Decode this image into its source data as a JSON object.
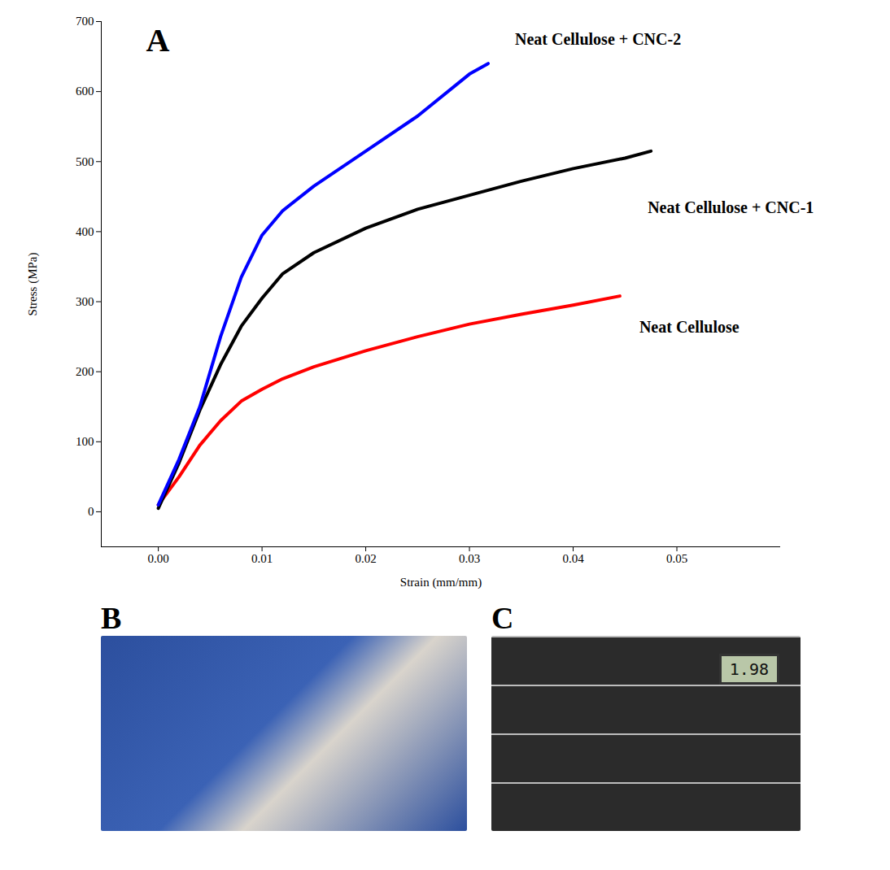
{
  "chart_data": {
    "type": "line",
    "panel": "A",
    "x_label": "Strain (mm/mm)",
    "y_label": "Stress (MPa)",
    "xlim": [
      -0.0055,
      0.06
    ],
    "xticks": [
      {
        "value": 0,
        "label": "0.00"
      },
      {
        "value": 0.01,
        "label": "0.01"
      },
      {
        "value": 0.02,
        "label": "0.02"
      },
      {
        "value": 0.03,
        "label": "0.03"
      },
      {
        "value": 0.04,
        "label": "0.04"
      },
      {
        "value": 0.05,
        "label": "0.05"
      }
    ],
    "ylim": [
      -50,
      700
    ],
    "yticks": [
      0,
      100,
      200,
      300,
      400,
      500,
      600,
      700
    ],
    "grid": false,
    "series": [
      {
        "name": "Neat Cellulose",
        "color": "#ff0000",
        "x": [
          0,
          0.002,
          0.004,
          0.006,
          0.008,
          0.01,
          0.012,
          0.015,
          0.02,
          0.025,
          0.03,
          0.035,
          0.04,
          0.0445
        ],
        "values": [
          10,
          50,
          95,
          130,
          158,
          175,
          190,
          207,
          230,
          250,
          268,
          282,
          295,
          308
        ]
      },
      {
        "name": "Neat Cellulose + CNC-1",
        "color": "#000000",
        "x": [
          0,
          0.002,
          0.004,
          0.006,
          0.008,
          0.01,
          0.012,
          0.015,
          0.02,
          0.025,
          0.03,
          0.035,
          0.04,
          0.045,
          0.0475
        ],
        "values": [
          5,
          70,
          145,
          210,
          265,
          305,
          340,
          370,
          405,
          432,
          452,
          472,
          490,
          505,
          515
        ]
      },
      {
        "name": "Neat Cellulose + CNC-2",
        "color": "#0000ff",
        "x": [
          0,
          0.002,
          0.004,
          0.006,
          0.008,
          0.01,
          0.012,
          0.015,
          0.02,
          0.025,
          0.03,
          0.0318
        ],
        "values": [
          10,
          75,
          150,
          250,
          335,
          395,
          430,
          465,
          515,
          565,
          625,
          640
        ]
      }
    ]
  },
  "photos": [
    {
      "label": "B"
    },
    {
      "label": "C",
      "display": "1.98"
    }
  ]
}
